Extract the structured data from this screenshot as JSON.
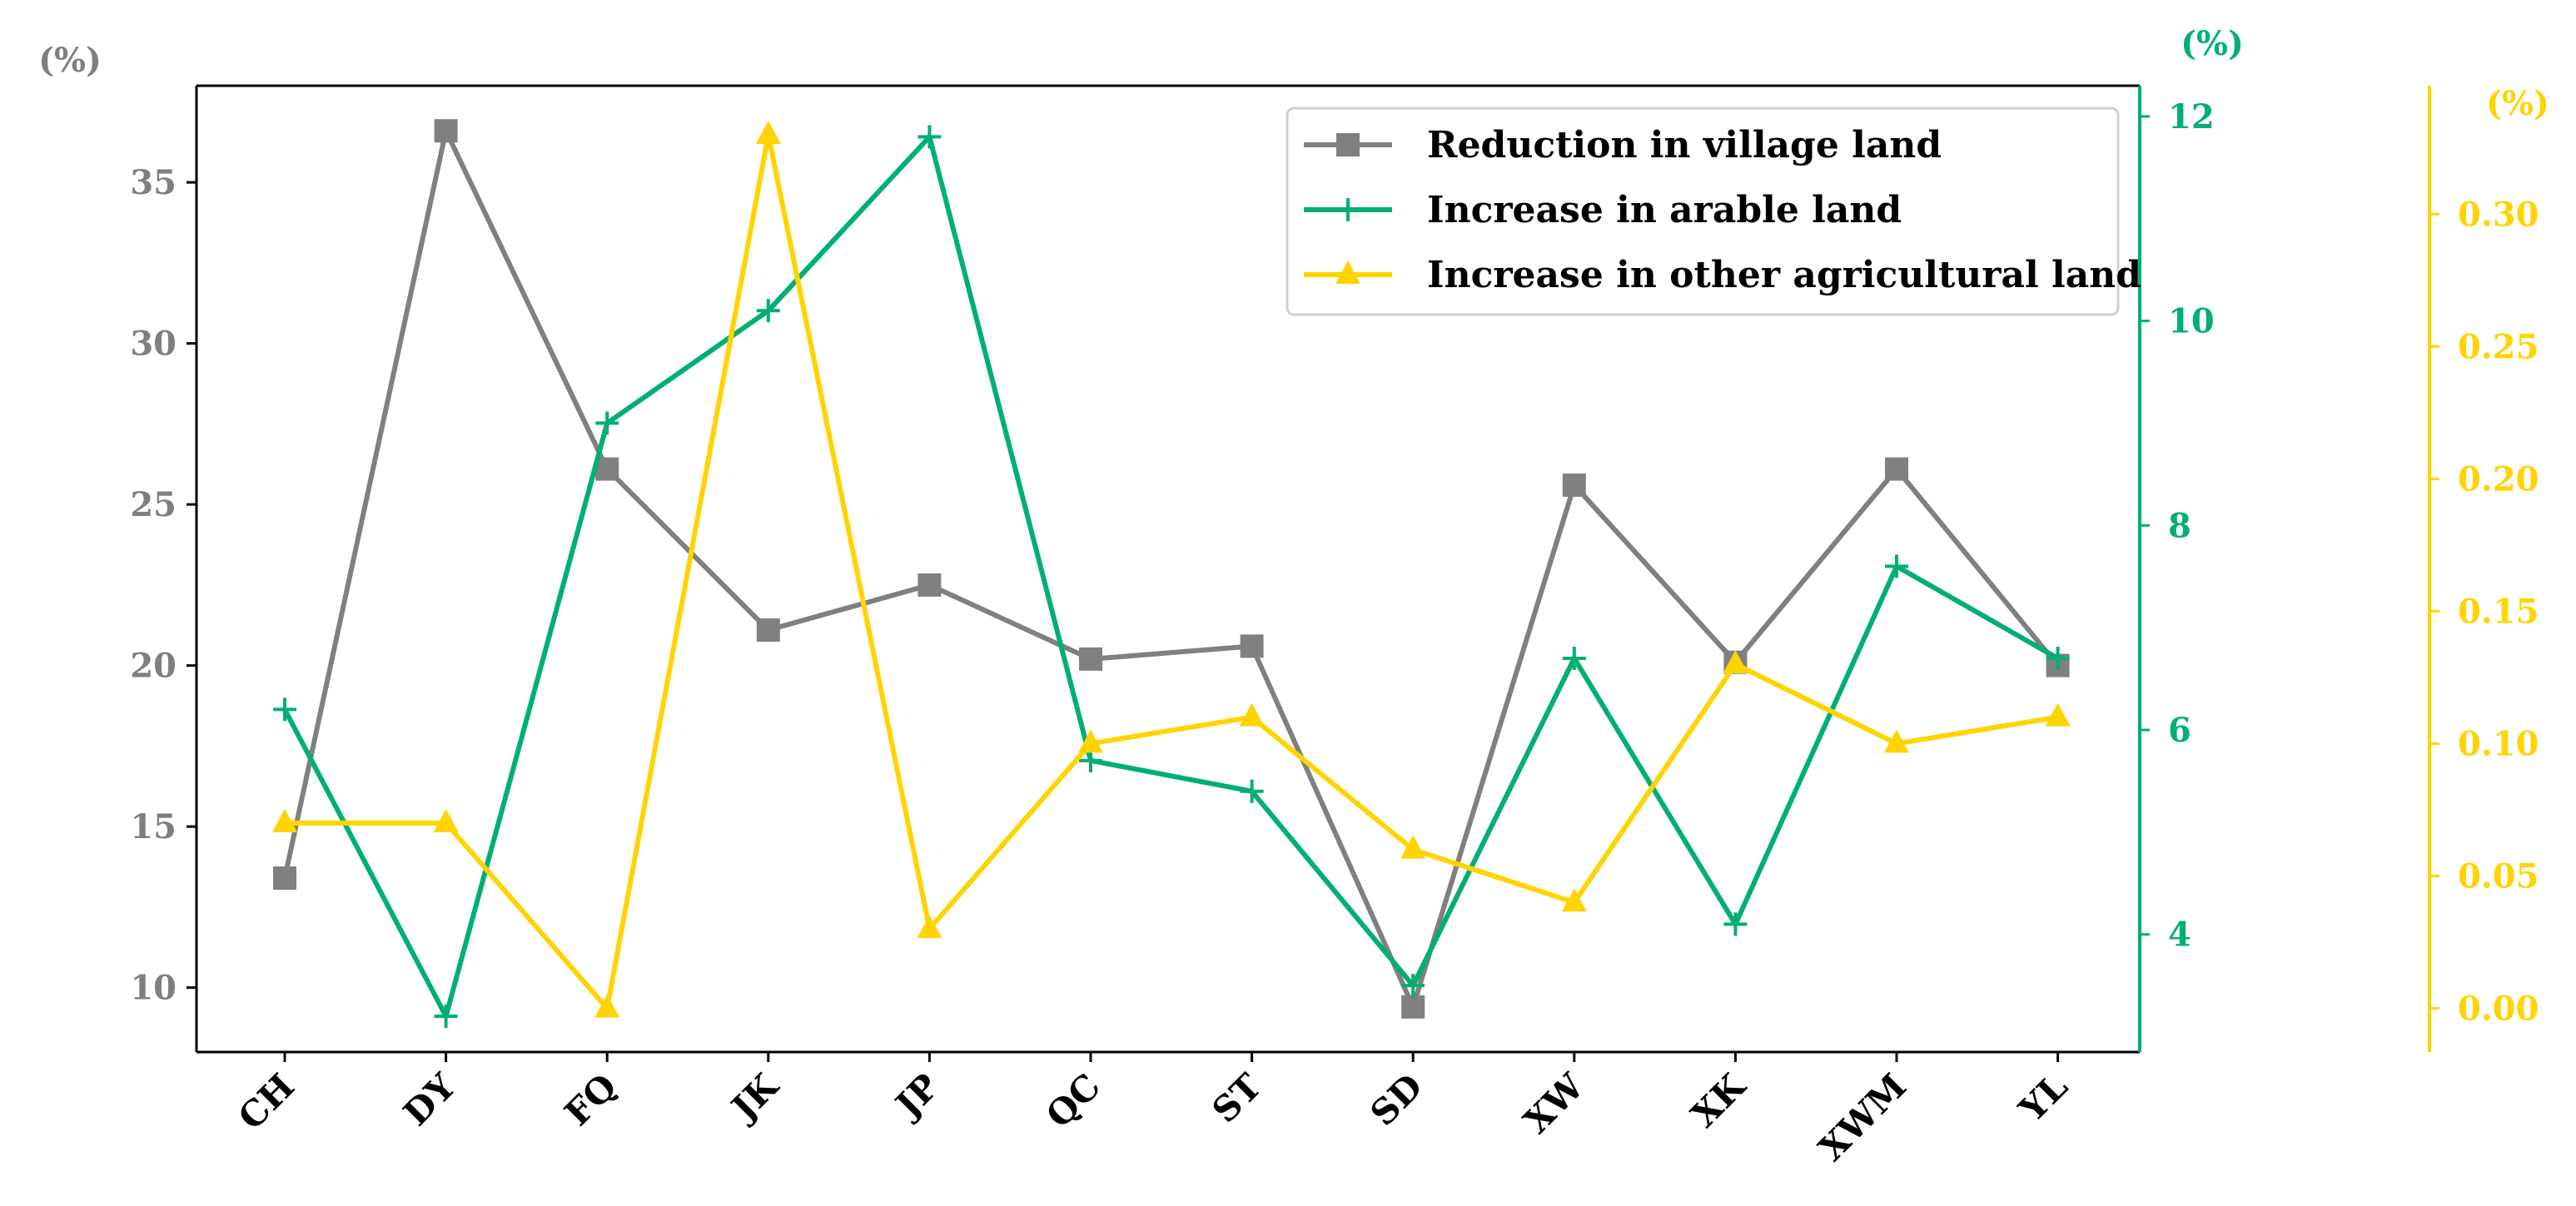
{
  "chart_data": {
    "type": "line",
    "categories": [
      "CH",
      "DY",
      "FQ",
      "JK",
      "JP",
      "QC",
      "ST",
      "SD",
      "XW",
      "XK",
      "XWM",
      "YL"
    ],
    "series": [
      {
        "name": "Reduction in village land",
        "axis": "left",
        "color": "#808080",
        "marker": "square",
        "values": [
          13.4,
          36.6,
          26.1,
          21.1,
          22.5,
          20.2,
          20.6,
          9.4,
          25.6,
          20.1,
          26.1,
          20.0
        ]
      },
      {
        "name": "Increase in arable land",
        "axis": "right1",
        "color": "#00b070",
        "marker": "plus",
        "values": [
          6.2,
          3.2,
          9.0,
          10.1,
          11.8,
          5.7,
          5.4,
          3.5,
          6.7,
          4.1,
          7.6,
          6.7
        ]
      },
      {
        "name": "Increase in other agricultural land",
        "axis": "right2",
        "color": "#ffd400",
        "marker": "triangle",
        "values": [
          0.07,
          0.07,
          0.0,
          0.33,
          0.03,
          0.1,
          0.11,
          0.06,
          0.04,
          0.13,
          0.1,
          0.11
        ]
      }
    ],
    "axes": {
      "left": {
        "label": "(%)",
        "ylim": [
          8,
          38
        ],
        "ticks": [
          10,
          15,
          20,
          25,
          30,
          35
        ],
        "tick_labels": [
          "10",
          "15",
          "20",
          "25",
          "30",
          "35"
        ],
        "color": "#7f7f7f"
      },
      "right1": {
        "label": "(%)",
        "ylim": [
          2.85,
          12.3
        ],
        "ticks": [
          4,
          6,
          8,
          10,
          12
        ],
        "tick_labels": [
          "4",
          "6",
          "8",
          "10",
          "12"
        ],
        "color": "#00b070"
      },
      "right2": {
        "label": "(%)",
        "ylim": [
          -0.0165,
          0.3485
        ],
        "ticks": [
          0.0,
          0.05,
          0.1,
          0.15,
          0.2,
          0.25,
          0.3
        ],
        "tick_labels": [
          "0.00",
          "0.05",
          "0.10",
          "0.15",
          "0.20",
          "0.25",
          "0.30"
        ],
        "color": "#ffd400"
      }
    },
    "legend_position": "top-right",
    "grid": false
  }
}
